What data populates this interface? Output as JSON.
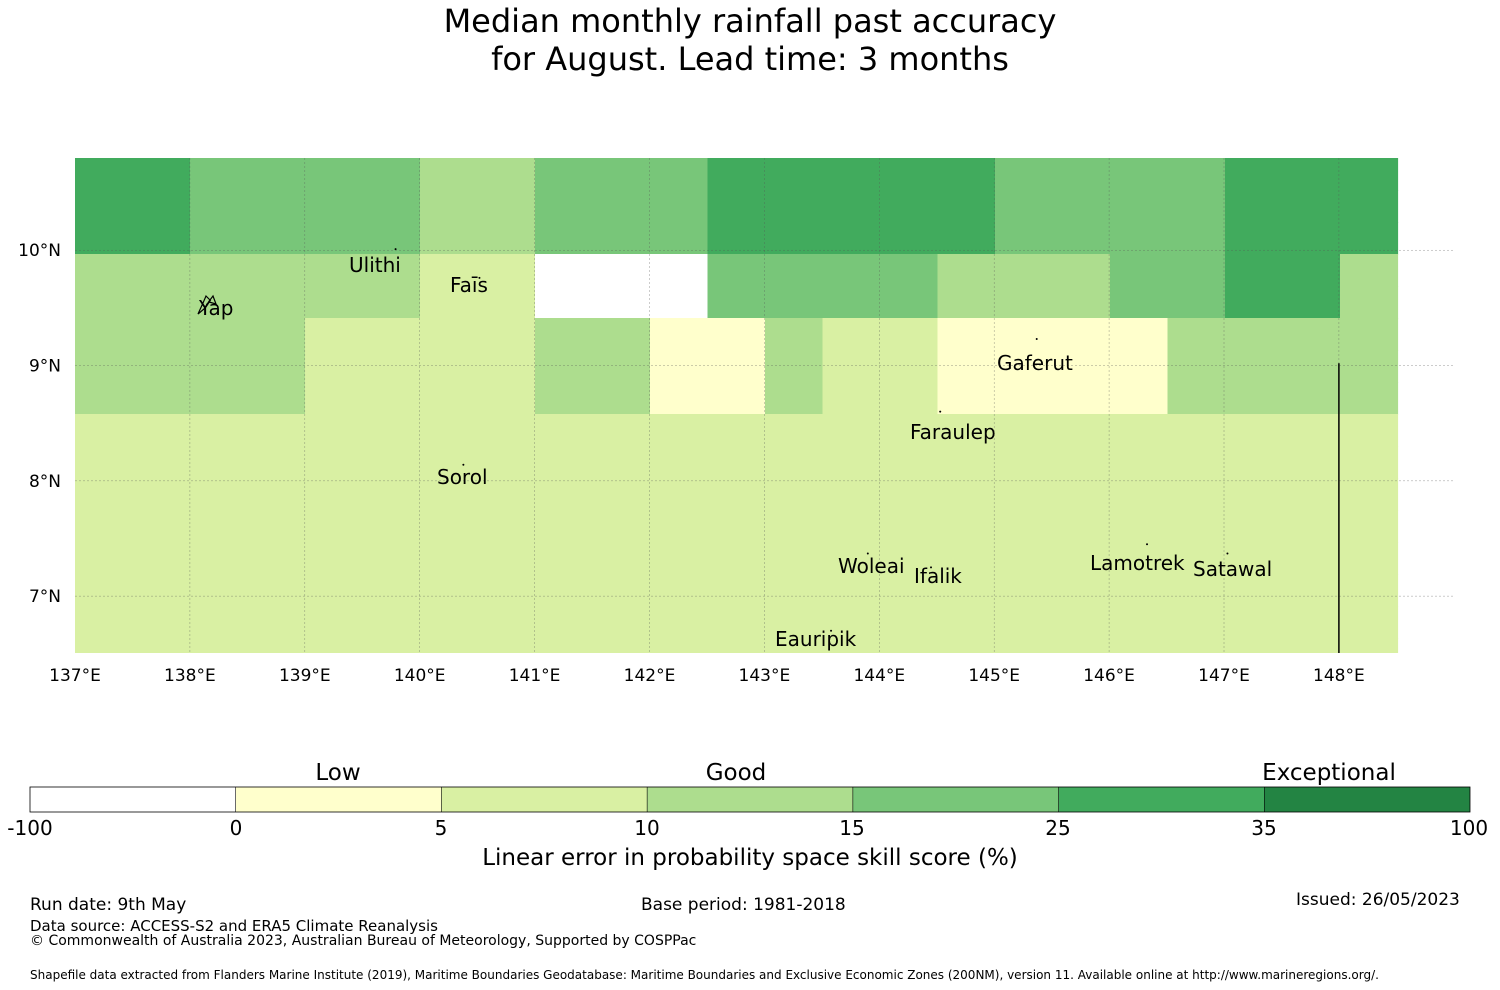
{
  "title": {
    "line1": "Median monthly rainfall past accuracy",
    "line2": "for August. Lead time: 3 months"
  },
  "map": {
    "lon_range": [
      137,
      149
    ],
    "lat_range": [
      6.5,
      10.8
    ],
    "lon_ticks": [
      "137°E",
      "138°E",
      "139°E",
      "140°E",
      "141°E",
      "142°E",
      "143°E",
      "144°E",
      "145°E",
      "146°E",
      "147°E",
      "148°E"
    ],
    "lat_ticks": [
      "10°N",
      "9°N",
      "8°N",
      "7°N"
    ],
    "grid_lines": true,
    "places": [
      "Ulithi",
      "Yap",
      "Faīs",
      "Gaferut",
      "Faraulep",
      "Sorol",
      "Woleai",
      "Ifalik",
      "Lamotrek",
      "Satawal",
      "Eauripik"
    ],
    "skill_grid_rows_top_to_bottom": [
      "55444433444555554444555",
      "55444433444555554444555",
      "55444433444555554444555",
      "33333322000444433344553",
      "33333322000444433344553",
      "33332222331132211113333",
      "33332222331132211113333",
      "33332222331132211113333",
      "22222222222222222222222",
      "22222222222222222222222",
      "22222222222222222222222",
      "22222222222222222222222",
      "22222222222222222222222",
      "22222222222222222222222",
      "22222222222222222222222",
      "22222222222222222222222"
    ]
  },
  "colorbar": {
    "category_labels": [
      "Low",
      "Good",
      "Exceptional"
    ],
    "tick_labels": [
      "-100",
      "0",
      "5",
      "10",
      "15",
      "25",
      "35",
      "100"
    ],
    "colors": [
      "#ffffff",
      "#ffffcc",
      "#d9f0a3",
      "#addd8e",
      "#78c679",
      "#41ab5d",
      "#238443"
    ],
    "xlabel": "Linear error in probability space skill score (%)"
  },
  "footer": {
    "run_date": "Run date: 9th May",
    "base_period": "Base period: 1981-2018",
    "issued": "Issued: 26/05/2023",
    "data_source": "Data source: ACCESS-S2 and ERA5 Climate Reanalysis",
    "copyright": "© Commonwealth of Australia 2023, Australian Bureau of Meteorology, Supported by COSPPac",
    "shapefile": "Shapefile data extracted from Flanders Marine Institute (2019), Maritime Boundaries Geodatabase: Maritime Boundaries and Exclusive Economic Zones (200NM), version 11. Available online at http://www.marineregions.org/."
  }
}
